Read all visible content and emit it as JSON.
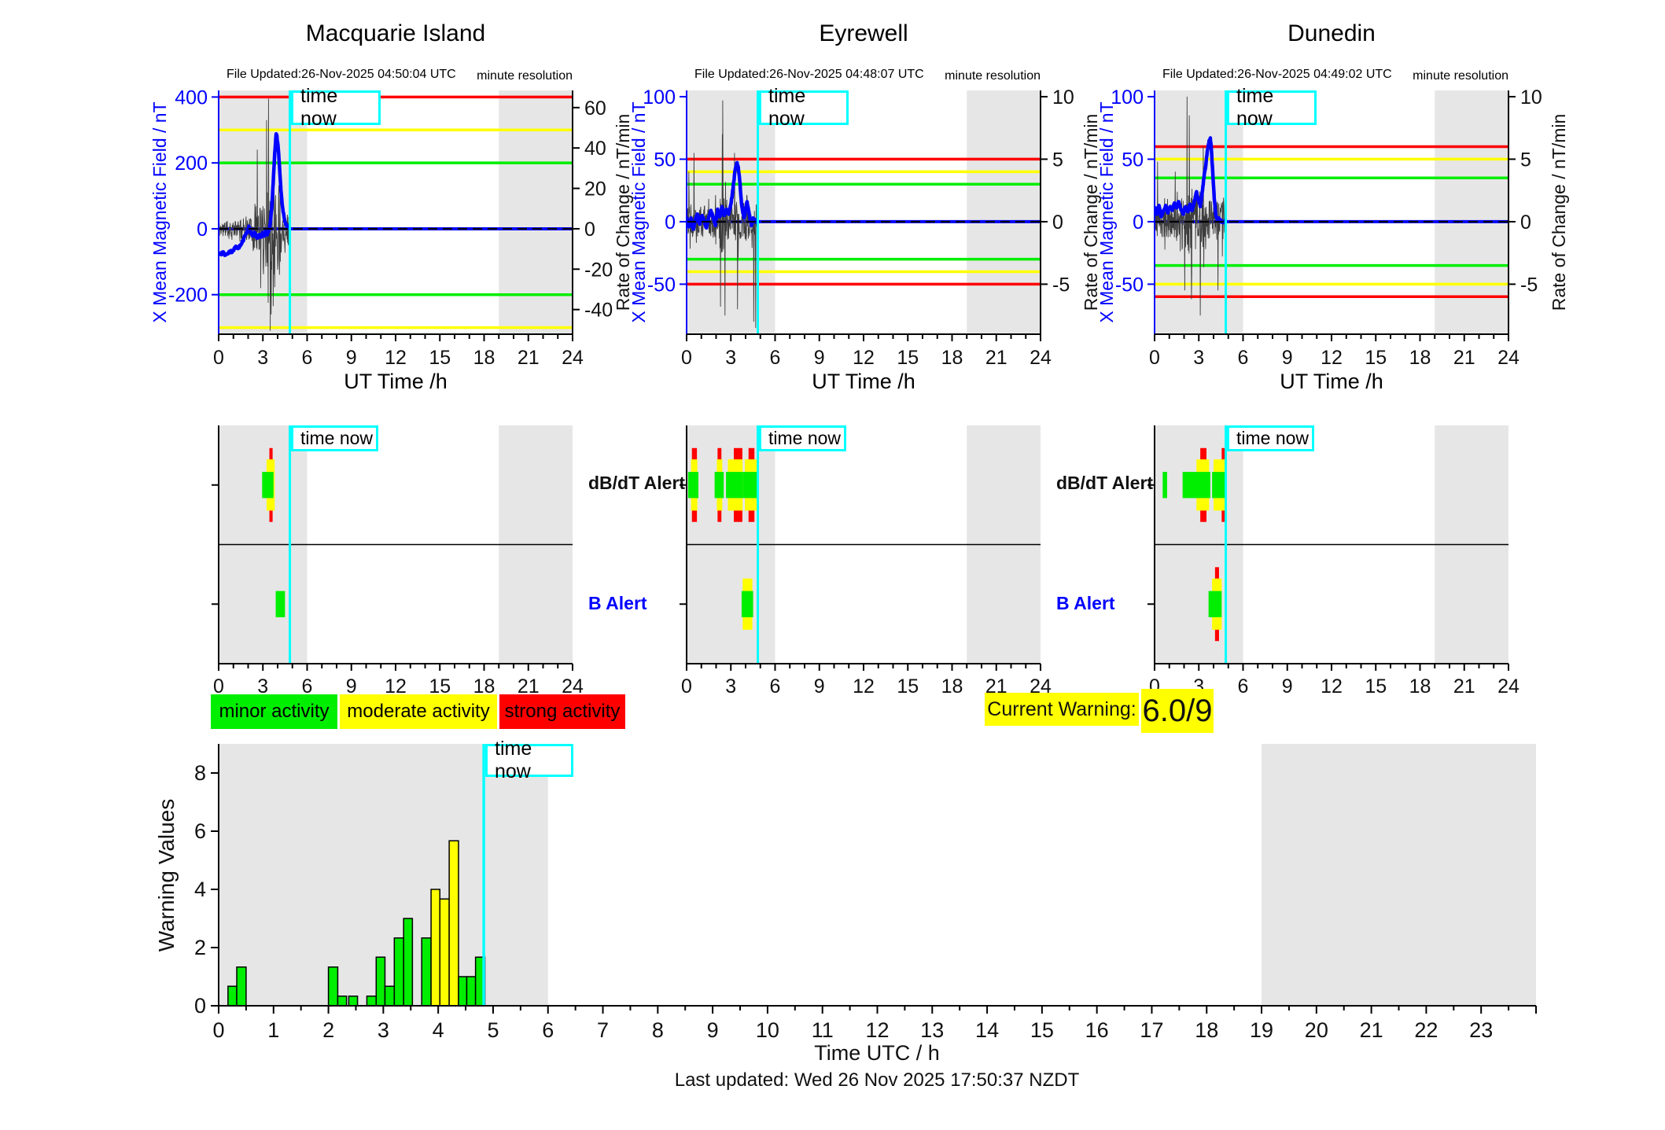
{
  "ui": {
    "time_now_label": "time now",
    "legend": [
      {
        "label": "minor activity",
        "color": "#00EE00"
      },
      {
        "label": "moderate activity",
        "color": "#FFFF00"
      },
      {
        "label": "strong activity",
        "color": "#FF0000"
      }
    ],
    "current_warning": {
      "label": "Current Warning:",
      "value": "6.0/9",
      "bg": "#FFFF00"
    },
    "footer": "Last updated: Wed 26 Nov 2025 17:50:37 NZDT",
    "colors": {
      "red": "#FF0000",
      "yellow": "#FFFF00",
      "green": "#00EE00",
      "blue": "#0000FF",
      "cyan": "#00FFFF",
      "band": "#E6E6E6",
      "noise": "#3C3C3C",
      "black": "#000000"
    }
  },
  "chart_data": {
    "type": "line",
    "time_now": 4.83,
    "shaded_hours": [
      [
        0,
        6
      ],
      [
        19,
        24
      ]
    ],
    "x_axis": {
      "range": [
        0,
        24
      ],
      "major_ticks": [
        0,
        3,
        6,
        9,
        12,
        15,
        18,
        21,
        24
      ],
      "minor_step": 1,
      "label": "UT Time /h"
    },
    "alert_labels": {
      "dbdt": "dB/dT Alert",
      "b": "B Alert"
    },
    "alert_levels": {
      "red_hh": 0.62,
      "yellow_hh": 0.43,
      "green_hh": 0.22
    },
    "stations": [
      {
        "name": "Macquarie Island",
        "file_updated": "File Updated:26-Nov-2025 04:50:04 UTC",
        "resolution_note": "minute resolution",
        "left_axis": {
          "label": "X Mean Magnetic Field / nT",
          "ticks": [
            400,
            200,
            0,
            -200
          ],
          "range": [
            -320,
            420
          ]
        },
        "right_axis": {
          "label": "Rate of Change / nT/min",
          "ticks": [
            60,
            40,
            20,
            0,
            -20,
            -40
          ],
          "range": [
            -52.2,
            68.5
          ]
        },
        "thresholds": {
          "red": [
            400,
            -400
          ],
          "yellow": [
            300,
            -300
          ],
          "green": [
            200,
            -200
          ],
          "blue": 0
        },
        "field_series": [
          [
            0,
            -72
          ],
          [
            0.15,
            -78
          ],
          [
            0.3,
            -70
          ],
          [
            0.45,
            -80
          ],
          [
            0.6,
            -75
          ],
          [
            0.75,
            -68
          ],
          [
            0.9,
            -72
          ],
          [
            1.05,
            -60
          ],
          [
            1.2,
            -55
          ],
          [
            1.35,
            -58
          ],
          [
            1.5,
            -48
          ],
          [
            1.65,
            -38
          ],
          [
            1.8,
            -20
          ],
          [
            1.95,
            -10
          ],
          [
            2.05,
            8
          ],
          [
            2.15,
            -8
          ],
          [
            2.3,
            -22
          ],
          [
            2.45,
            -12
          ],
          [
            2.6,
            -28
          ],
          [
            2.75,
            -18
          ],
          [
            2.9,
            -25
          ],
          [
            3.0,
            -12
          ],
          [
            3.1,
            -22
          ],
          [
            3.2,
            -8
          ],
          [
            3.3,
            -18
          ],
          [
            3.4,
            -5
          ],
          [
            3.5,
            15
          ],
          [
            3.6,
            60
          ],
          [
            3.7,
            140
          ],
          [
            3.8,
            230
          ],
          [
            3.9,
            288
          ],
          [
            3.95,
            282
          ],
          [
            4.05,
            240
          ],
          [
            4.15,
            170
          ],
          [
            4.25,
            105
          ],
          [
            4.35,
            60
          ],
          [
            4.45,
            32
          ],
          [
            4.55,
            15
          ],
          [
            4.65,
            6
          ],
          [
            4.75,
            2
          ],
          [
            4.83,
            0
          ]
        ],
        "noise": {
          "seed": 11,
          "amp": [
            [
              0,
              1.5,
              45
            ],
            [
              1.5,
              2.3,
              60
            ],
            [
              2.3,
              3.0,
              140
            ],
            [
              3.0,
              4.2,
              260
            ],
            [
              4.2,
              4.83,
              90
            ]
          ],
          "spikes": [
            [
              3.38,
              395
            ],
            [
              3.5,
              -310
            ],
            [
              3.56,
              -260
            ],
            [
              3.25,
              330
            ],
            [
              2.62,
              240
            ],
            [
              2.85,
              -180
            ]
          ]
        },
        "alerts": {
          "dbdt": [
            {
              "green": [
                2.95,
                3.72
              ],
              "yellow": [
                3.25,
                3.8
              ],
              "red": [
                3.44,
                3.66
              ]
            }
          ],
          "b": [
            {
              "green": [
                3.87,
                4.5
              ]
            }
          ]
        }
      },
      {
        "name": "Eyrewell",
        "file_updated": "File Updated:26-Nov-2025 04:48:07 UTC",
        "resolution_note": "minute resolution",
        "left_axis": {
          "label": "X Mean Magnetic Field / nT",
          "ticks": [
            100,
            50,
            0,
            -50
          ],
          "range": [
            -90,
            105
          ]
        },
        "right_axis": {
          "label": "Rate of Change / nT/min",
          "ticks": [
            10,
            5,
            0,
            -5
          ],
          "range": [
            -9,
            10.5
          ]
        },
        "thresholds": {
          "red": [
            50,
            -50
          ],
          "yellow": [
            40,
            -40
          ],
          "green": [
            30,
            -30
          ],
          "blue": 0
        },
        "field_series": [
          [
            0,
            4
          ],
          [
            0.15,
            -4
          ],
          [
            0.3,
            3
          ],
          [
            0.45,
            -6
          ],
          [
            0.6,
            2
          ],
          [
            0.75,
            6
          ],
          [
            0.9,
            -2
          ],
          [
            1.05,
            5
          ],
          [
            1.2,
            1
          ],
          [
            1.35,
            -5
          ],
          [
            1.5,
            4
          ],
          [
            1.65,
            9
          ],
          [
            1.8,
            3
          ],
          [
            1.95,
            -3
          ],
          [
            2.1,
            10
          ],
          [
            2.25,
            4
          ],
          [
            2.4,
            12
          ],
          [
            2.55,
            5
          ],
          [
            2.7,
            10
          ],
          [
            2.85,
            6
          ],
          [
            3.0,
            14
          ],
          [
            3.1,
            22
          ],
          [
            3.2,
            32
          ],
          [
            3.3,
            42
          ],
          [
            3.4,
            47
          ],
          [
            3.5,
            44
          ],
          [
            3.6,
            33
          ],
          [
            3.7,
            18
          ],
          [
            3.8,
            8
          ],
          [
            3.9,
            3
          ],
          [
            4.0,
            10
          ],
          [
            4.1,
            16
          ],
          [
            4.2,
            9
          ],
          [
            4.3,
            2
          ],
          [
            4.4,
            -3
          ],
          [
            4.5,
            3
          ],
          [
            4.6,
            1
          ],
          [
            4.7,
            0
          ],
          [
            4.83,
            0
          ]
        ],
        "noise": {
          "seed": 22,
          "amp": [
            [
              0,
              2.2,
              22
            ],
            [
              2.2,
              2.9,
              45
            ],
            [
              2.9,
              3.8,
              30
            ],
            [
              3.8,
              4.83,
              28
            ]
          ],
          "spikes": [
            [
              2.45,
              97
            ],
            [
              2.42,
              70
            ],
            [
              2.3,
              -68
            ],
            [
              2.6,
              -75
            ],
            [
              3.45,
              -70
            ],
            [
              0.5,
              55
            ],
            [
              0.15,
              40
            ],
            [
              4.55,
              -80
            ],
            [
              4.68,
              -85
            ],
            [
              3.25,
              55
            ]
          ]
        },
        "alerts": {
          "dbdt": [
            {
              "green": [
                0.1,
                0.8
              ],
              "yellow": [
                0.3,
                0.73
              ],
              "red": [
                0.36,
                0.7
              ]
            },
            {
              "green": [
                1.9,
                2.52
              ],
              "yellow": [
                2.05,
                2.42
              ],
              "red": [
                2.1,
                2.36
              ]
            },
            {
              "green": [
                2.67,
                3.8
              ],
              "yellow": [
                2.8,
                3.8
              ],
              "red": [
                3.2,
                3.78
              ]
            },
            {
              "green": [
                3.8,
                4.83
              ],
              "yellow": [
                3.95,
                4.83
              ],
              "red": [
                4.2,
                4.6
              ]
            }
          ],
          "b": [
            {
              "green": [
                3.73,
                4.51
              ],
              "yellow": [
                3.8,
                4.46
              ]
            }
          ]
        }
      },
      {
        "name": "Dunedin",
        "file_updated": "File Updated:26-Nov-2025 04:49:02 UTC",
        "resolution_note": "minute resolution",
        "left_axis": {
          "label": "X Mean Magnetic Field / nT",
          "ticks": [
            100,
            50,
            0,
            -50
          ],
          "range": [
            -90,
            105
          ]
        },
        "right_axis": {
          "label": "Rate of Change / nT/min",
          "ticks": [
            10,
            5,
            0,
            -5
          ],
          "range": [
            -9,
            10.5
          ]
        },
        "thresholds": {
          "red": [
            60,
            -60
          ],
          "yellow": [
            50,
            -50
          ],
          "green": [
            35,
            -35
          ],
          "blue": 0
        },
        "field_series": [
          [
            0,
            12
          ],
          [
            0.15,
            6
          ],
          [
            0.3,
            13
          ],
          [
            0.45,
            4
          ],
          [
            0.6,
            9
          ],
          [
            0.75,
            13
          ],
          [
            0.9,
            7
          ],
          [
            1.05,
            12
          ],
          [
            1.2,
            9
          ],
          [
            1.35,
            15
          ],
          [
            1.5,
            11
          ],
          [
            1.65,
            16
          ],
          [
            1.8,
            9
          ],
          [
            1.95,
            6
          ],
          [
            2.1,
            12
          ],
          [
            2.25,
            8
          ],
          [
            2.4,
            14
          ],
          [
            2.55,
            9
          ],
          [
            2.7,
            17
          ],
          [
            2.85,
            24
          ],
          [
            3.0,
            16
          ],
          [
            3.1,
            12
          ],
          [
            3.2,
            20
          ],
          [
            3.3,
            30
          ],
          [
            3.4,
            40
          ],
          [
            3.5,
            48
          ],
          [
            3.6,
            58
          ],
          [
            3.7,
            65
          ],
          [
            3.78,
            67
          ],
          [
            3.85,
            58
          ],
          [
            3.95,
            38
          ],
          [
            4.05,
            18
          ],
          [
            4.15,
            6
          ],
          [
            4.25,
            1
          ],
          [
            4.35,
            3
          ],
          [
            4.45,
            0
          ],
          [
            4.6,
            0
          ],
          [
            4.83,
            0
          ]
        ],
        "noise": {
          "seed": 33,
          "amp": [
            [
              0,
              1.8,
              25
            ],
            [
              1.8,
              2.6,
              55
            ],
            [
              2.6,
              3.5,
              45
            ],
            [
              3.5,
              4.83,
              30
            ]
          ],
          "spikes": [
            [
              2.2,
              100
            ],
            [
              2.35,
              85
            ],
            [
              2.05,
              -55
            ],
            [
              2.5,
              -62
            ],
            [
              3.1,
              -75
            ],
            [
              3.3,
              60
            ],
            [
              4.3,
              -55
            ],
            [
              0.2,
              48
            ],
            [
              1.4,
              40
            ]
          ]
        },
        "alerts": {
          "dbdt": [
            {
              "green": [
                0.55,
                0.85
              ]
            },
            {
              "green": [
                1.9,
                2.8
              ]
            },
            {
              "green": [
                2.8,
                3.78
              ],
              "yellow": [
                2.84,
                3.7
              ],
              "red": [
                3.1,
                3.52
              ]
            },
            {
              "green": [
                3.9,
                4.78
              ],
              "yellow": [
                4.0,
                4.78
              ],
              "red": [
                4.55,
                4.8
              ]
            }
          ],
          "b": [
            {
              "green": [
                3.66,
                4.55
              ],
              "yellow": [
                3.9,
                4.55
              ],
              "red": [
                4.1,
                4.37
              ]
            }
          ]
        }
      }
    ],
    "warning_chart": {
      "ylabel": "Warning Values",
      "xlabel": "Time UTC / h",
      "yticks": [
        0,
        2,
        4,
        6,
        8
      ],
      "ylim": [
        0,
        9
      ],
      "xlim": [
        0,
        24
      ],
      "xtick_labels": [
        0,
        1,
        2,
        3,
        4,
        5,
        6,
        7,
        8,
        9,
        10,
        11,
        12,
        13,
        14,
        15,
        16,
        17,
        18,
        19,
        20,
        21,
        22,
        23
      ],
      "bars": [
        [
          0.17,
          0.33,
          0.67,
          "green"
        ],
        [
          0.33,
          0.5,
          1.33,
          "green"
        ],
        [
          2.0,
          2.17,
          1.33,
          "green"
        ],
        [
          2.17,
          2.33,
          0.33,
          "green"
        ],
        [
          2.37,
          2.53,
          0.33,
          "green"
        ],
        [
          2.7,
          2.87,
          0.33,
          "green"
        ],
        [
          2.87,
          3.03,
          1.67,
          "green"
        ],
        [
          3.03,
          3.2,
          0.67,
          "green"
        ],
        [
          3.2,
          3.37,
          2.33,
          "green"
        ],
        [
          3.37,
          3.53,
          3.0,
          "green"
        ],
        [
          3.7,
          3.87,
          2.33,
          "green"
        ],
        [
          3.87,
          4.03,
          4.0,
          "yellow"
        ],
        [
          4.03,
          4.2,
          3.67,
          "yellow"
        ],
        [
          4.2,
          4.37,
          5.67,
          "yellow"
        ],
        [
          4.37,
          4.52,
          1.0,
          "green"
        ],
        [
          4.52,
          4.68,
          1.0,
          "green"
        ],
        [
          4.68,
          4.85,
          1.67,
          "green"
        ]
      ]
    }
  }
}
